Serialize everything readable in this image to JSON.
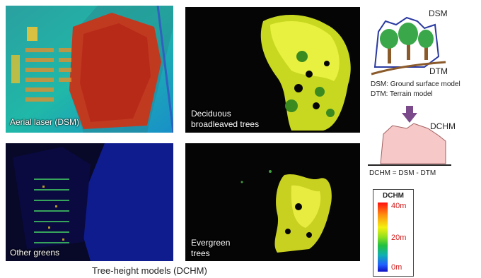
{
  "panels": {
    "aerial": {
      "label": "Aerial laser (DSM)"
    },
    "deciduous": {
      "label_line1": "Deciduous",
      "label_line2": "broadleaved trees"
    },
    "other": {
      "label": "Other greens"
    },
    "evergreen": {
      "label_line1": "Evergreen",
      "label_line2": "trees"
    }
  },
  "caption": "Tree-height models (DCHM)",
  "diagram": {
    "dsm_label": "DSM",
    "dtm_label": "DTM",
    "def_dsm": "DSM: Ground surface model",
    "def_dtm": "DTM: Terrain model",
    "dchm_label": "DCHM",
    "formula": "DCHM = DSM - DTM"
  },
  "legend": {
    "title": "DCHM",
    "ticks": [
      "40m",
      "20m",
      "0m"
    ]
  },
  "colors": {
    "tree_green": "#3aa84a",
    "terrain_brown": "#8b5a2b",
    "outline_blue": "#2a3aa0",
    "dchm_fill": "#f6c8c8",
    "arrow_purple": "#7a4a8a"
  }
}
